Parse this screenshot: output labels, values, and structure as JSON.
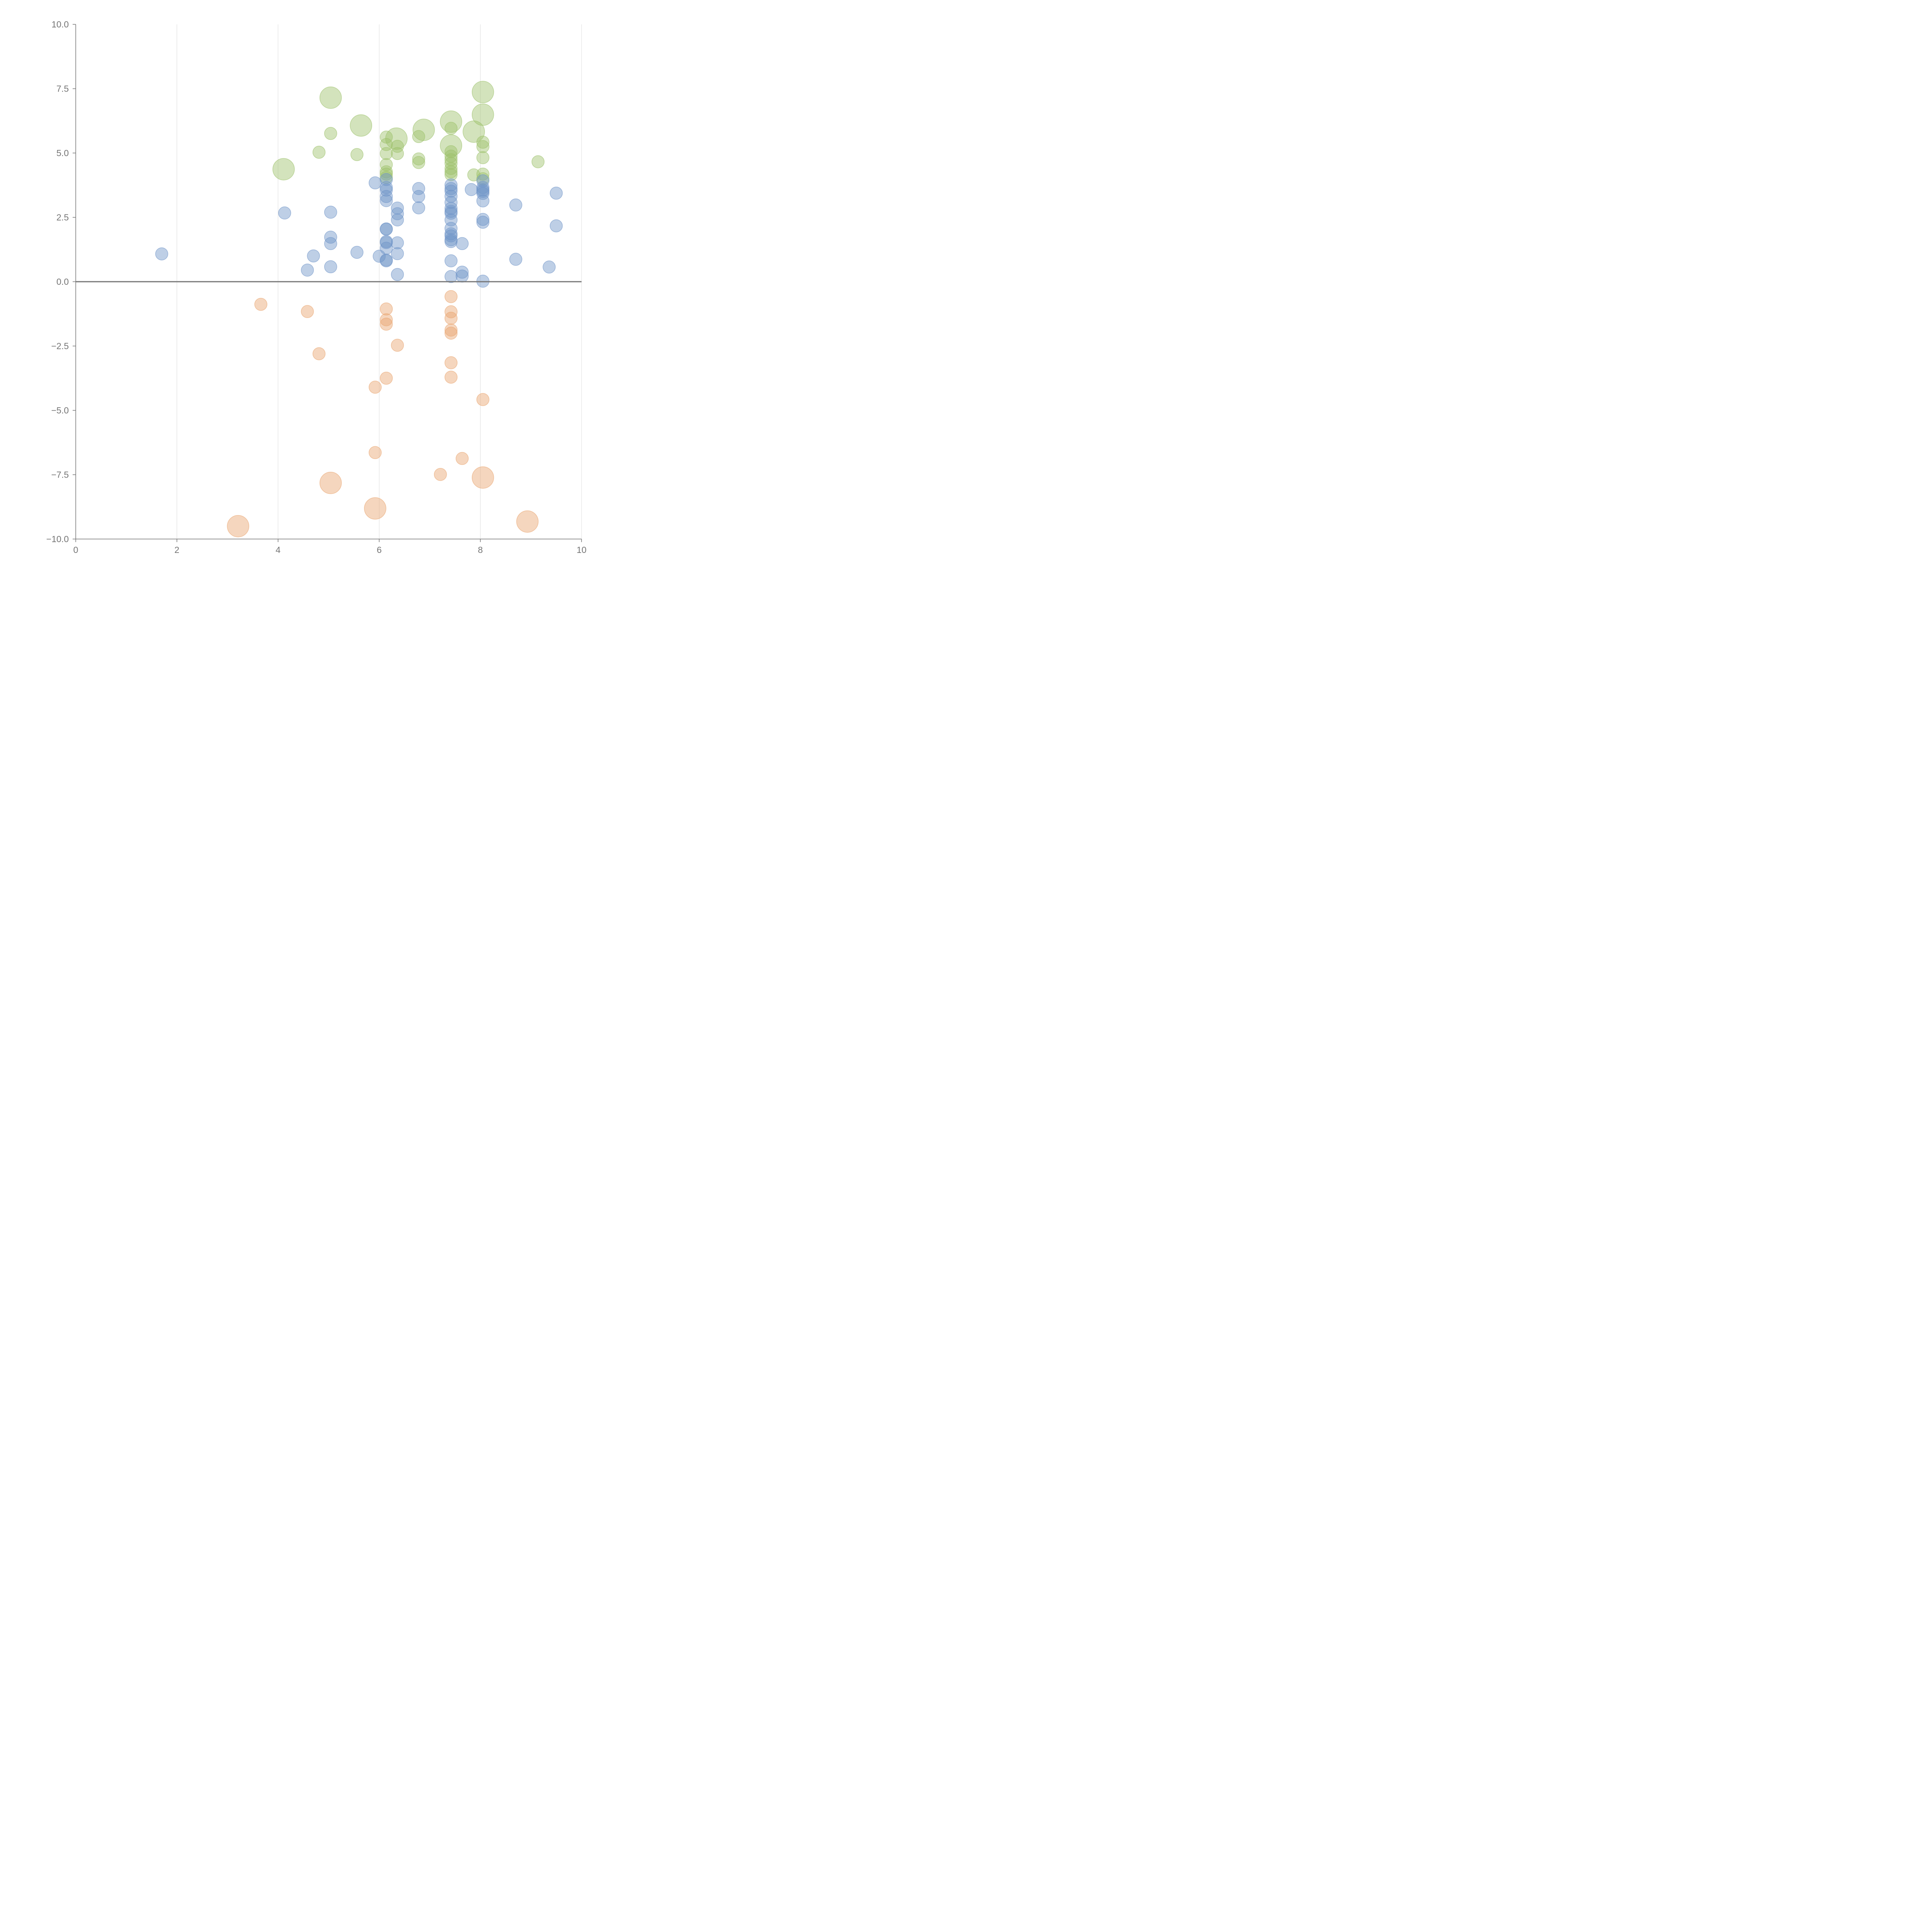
{
  "chart_data": {
    "type": "scatter",
    "title": "",
    "xlabel": "",
    "ylabel": "",
    "xlim": [
      0,
      10
    ],
    "ylim": [
      -10,
      10
    ],
    "x_ticks": [
      0,
      2,
      4,
      6,
      8,
      10
    ],
    "x_tick_labels": [
      "0",
      "2",
      "4",
      "6",
      "8",
      "10"
    ],
    "y_ticks": [
      10,
      7.5,
      5,
      2.5,
      0,
      -2.5,
      -5,
      -7.5,
      -10
    ],
    "y_tick_labels": [
      "10.0",
      "7.5",
      "5.0",
      "2.5",
      "0.0",
      "−2.5",
      "−5.0",
      "−7.5",
      "−10.0"
    ],
    "grid": "vertical",
    "zero_line": true,
    "legend": "none",
    "point_sizes": "small = 1, large = 2",
    "colors": {
      "green": "#9dc26a",
      "blue": "#6f94c8",
      "orange": "#e9a56f"
    },
    "series": [
      {
        "color": "green",
        "points": [
          [
            5.04,
            7.15,
            2
          ],
          [
            5.64,
            6.07,
            2
          ],
          [
            6.34,
            5.56,
            2
          ],
          [
            6.88,
            5.9,
            2
          ],
          [
            7.42,
            6.22,
            2
          ],
          [
            7.42,
            5.29,
            2
          ],
          [
            8.05,
            7.37,
            2
          ],
          [
            8.05,
            6.49,
            2
          ],
          [
            7.87,
            5.83,
            2
          ],
          [
            4.11,
            4.37,
            2
          ],
          [
            5.04,
            5.76,
            1
          ],
          [
            4.81,
            5.03,
            1
          ],
          [
            5.56,
            4.94,
            1
          ],
          [
            6.14,
            5.62,
            1
          ],
          [
            6.14,
            5.33,
            1
          ],
          [
            6.14,
            4.98,
            1
          ],
          [
            6.14,
            4.55,
            1
          ],
          [
            6.14,
            4.27,
            1
          ],
          [
            6.14,
            4.18,
            1
          ],
          [
            6.14,
            4.05,
            1
          ],
          [
            6.36,
            5.26,
            1
          ],
          [
            6.36,
            4.98,
            1
          ],
          [
            6.78,
            5.64,
            1
          ],
          [
            6.78,
            4.77,
            1
          ],
          [
            6.78,
            4.63,
            1
          ],
          [
            7.42,
            5.96,
            1
          ],
          [
            7.42,
            5.05,
            1
          ],
          [
            7.42,
            4.88,
            1
          ],
          [
            7.42,
            4.74,
            1
          ],
          [
            7.42,
            4.6,
            1
          ],
          [
            7.42,
            4.4,
            1
          ],
          [
            7.42,
            4.27,
            1
          ],
          [
            7.42,
            4.16,
            1
          ],
          [
            7.87,
            4.15,
            1
          ],
          [
            8.05,
            5.42,
            1
          ],
          [
            8.05,
            5.25,
            1
          ],
          [
            8.05,
            4.82,
            1
          ],
          [
            8.05,
            4.18,
            1
          ],
          [
            8.05,
            4.0,
            1
          ],
          [
            9.14,
            4.66,
            1
          ]
        ]
      },
      {
        "color": "blue",
        "points": [
          [
            1.7,
            1.08,
            1
          ],
          [
            4.13,
            2.67,
            1
          ],
          [
            4.58,
            0.45,
            1
          ],
          [
            4.7,
            1.0,
            1
          ],
          [
            5.04,
            2.7,
            1
          ],
          [
            5.04,
            1.73,
            1
          ],
          [
            5.04,
            1.48,
            1
          ],
          [
            5.04,
            0.58,
            1
          ],
          [
            5.56,
            1.14,
            1
          ],
          [
            5.92,
            3.84,
            1
          ],
          [
            6.0,
            0.99,
            1
          ],
          [
            6.14,
            3.97,
            1
          ],
          [
            6.14,
            3.66,
            1
          ],
          [
            6.14,
            3.56,
            1
          ],
          [
            6.14,
            3.31,
            1
          ],
          [
            6.14,
            3.15,
            1
          ],
          [
            6.14,
            2.05,
            1
          ],
          [
            6.14,
            2.04,
            1
          ],
          [
            6.14,
            1.56,
            1
          ],
          [
            6.14,
            1.52,
            1
          ],
          [
            6.14,
            1.3,
            1
          ],
          [
            6.14,
            0.84,
            1
          ],
          [
            6.14,
            0.81,
            1
          ],
          [
            6.36,
            2.86,
            1
          ],
          [
            6.36,
            2.64,
            1
          ],
          [
            6.36,
            2.4,
            1
          ],
          [
            6.36,
            1.51,
            1
          ],
          [
            6.36,
            1.09,
            1
          ],
          [
            6.36,
            0.28,
            1
          ],
          [
            6.78,
            3.62,
            1
          ],
          [
            6.78,
            3.31,
            1
          ],
          [
            6.78,
            2.87,
            1
          ],
          [
            7.42,
            3.76,
            1
          ],
          [
            7.42,
            3.62,
            1
          ],
          [
            7.42,
            3.52,
            1
          ],
          [
            7.42,
            3.32,
            1
          ],
          [
            7.42,
            3.08,
            1
          ],
          [
            7.42,
            2.85,
            1
          ],
          [
            7.42,
            2.73,
            1
          ],
          [
            7.42,
            2.66,
            1
          ],
          [
            7.42,
            2.4,
            1
          ],
          [
            7.42,
            2.07,
            1
          ],
          [
            7.42,
            1.86,
            1
          ],
          [
            7.42,
            1.78,
            1
          ],
          [
            7.42,
            1.63,
            1
          ],
          [
            7.42,
            1.56,
            1
          ],
          [
            7.42,
            0.81,
            1
          ],
          [
            7.42,
            0.2,
            1
          ],
          [
            7.64,
            1.48,
            1
          ],
          [
            7.64,
            0.37,
            1
          ],
          [
            7.64,
            0.22,
            1
          ],
          [
            7.82,
            3.58,
            1
          ],
          [
            8.05,
            3.92,
            1
          ],
          [
            8.05,
            3.66,
            1
          ],
          [
            8.05,
            3.57,
            1
          ],
          [
            8.05,
            3.51,
            1
          ],
          [
            8.05,
            3.43,
            1
          ],
          [
            8.05,
            3.14,
            1
          ],
          [
            8.05,
            2.42,
            1
          ],
          [
            8.05,
            2.31,
            1
          ],
          [
            8.05,
            0.02,
            1
          ],
          [
            8.7,
            2.98,
            1
          ],
          [
            8.7,
            0.87,
            1
          ],
          [
            9.36,
            0.57,
            1
          ],
          [
            9.5,
            3.44,
            1
          ],
          [
            9.5,
            2.17,
            1
          ]
        ]
      },
      {
        "color": "orange",
        "points": [
          [
            3.66,
            -0.88,
            1
          ],
          [
            4.58,
            -1.16,
            1
          ],
          [
            4.81,
            -2.8,
            1
          ],
          [
            5.92,
            -4.1,
            1
          ],
          [
            5.92,
            -6.64,
            1
          ],
          [
            6.14,
            -1.06,
            1
          ],
          [
            6.14,
            -1.48,
            1
          ],
          [
            6.14,
            -1.65,
            1
          ],
          [
            6.14,
            -3.75,
            1
          ],
          [
            6.36,
            -2.47,
            1
          ],
          [
            7.21,
            -7.49,
            1
          ],
          [
            7.42,
            -0.58,
            1
          ],
          [
            7.42,
            -1.17,
            1
          ],
          [
            7.42,
            -1.42,
            1
          ],
          [
            7.42,
            -1.88,
            1
          ],
          [
            7.42,
            -2.0,
            1
          ],
          [
            7.42,
            -3.15,
            1
          ],
          [
            7.42,
            -3.71,
            1
          ],
          [
            7.64,
            -6.87,
            1
          ],
          [
            8.05,
            -4.58,
            1
          ],
          [
            3.21,
            -9.5,
            2
          ],
          [
            5.04,
            -7.82,
            2
          ],
          [
            5.92,
            -8.81,
            2
          ],
          [
            8.05,
            -7.61,
            2
          ],
          [
            8.93,
            -9.32,
            2
          ]
        ]
      }
    ]
  }
}
